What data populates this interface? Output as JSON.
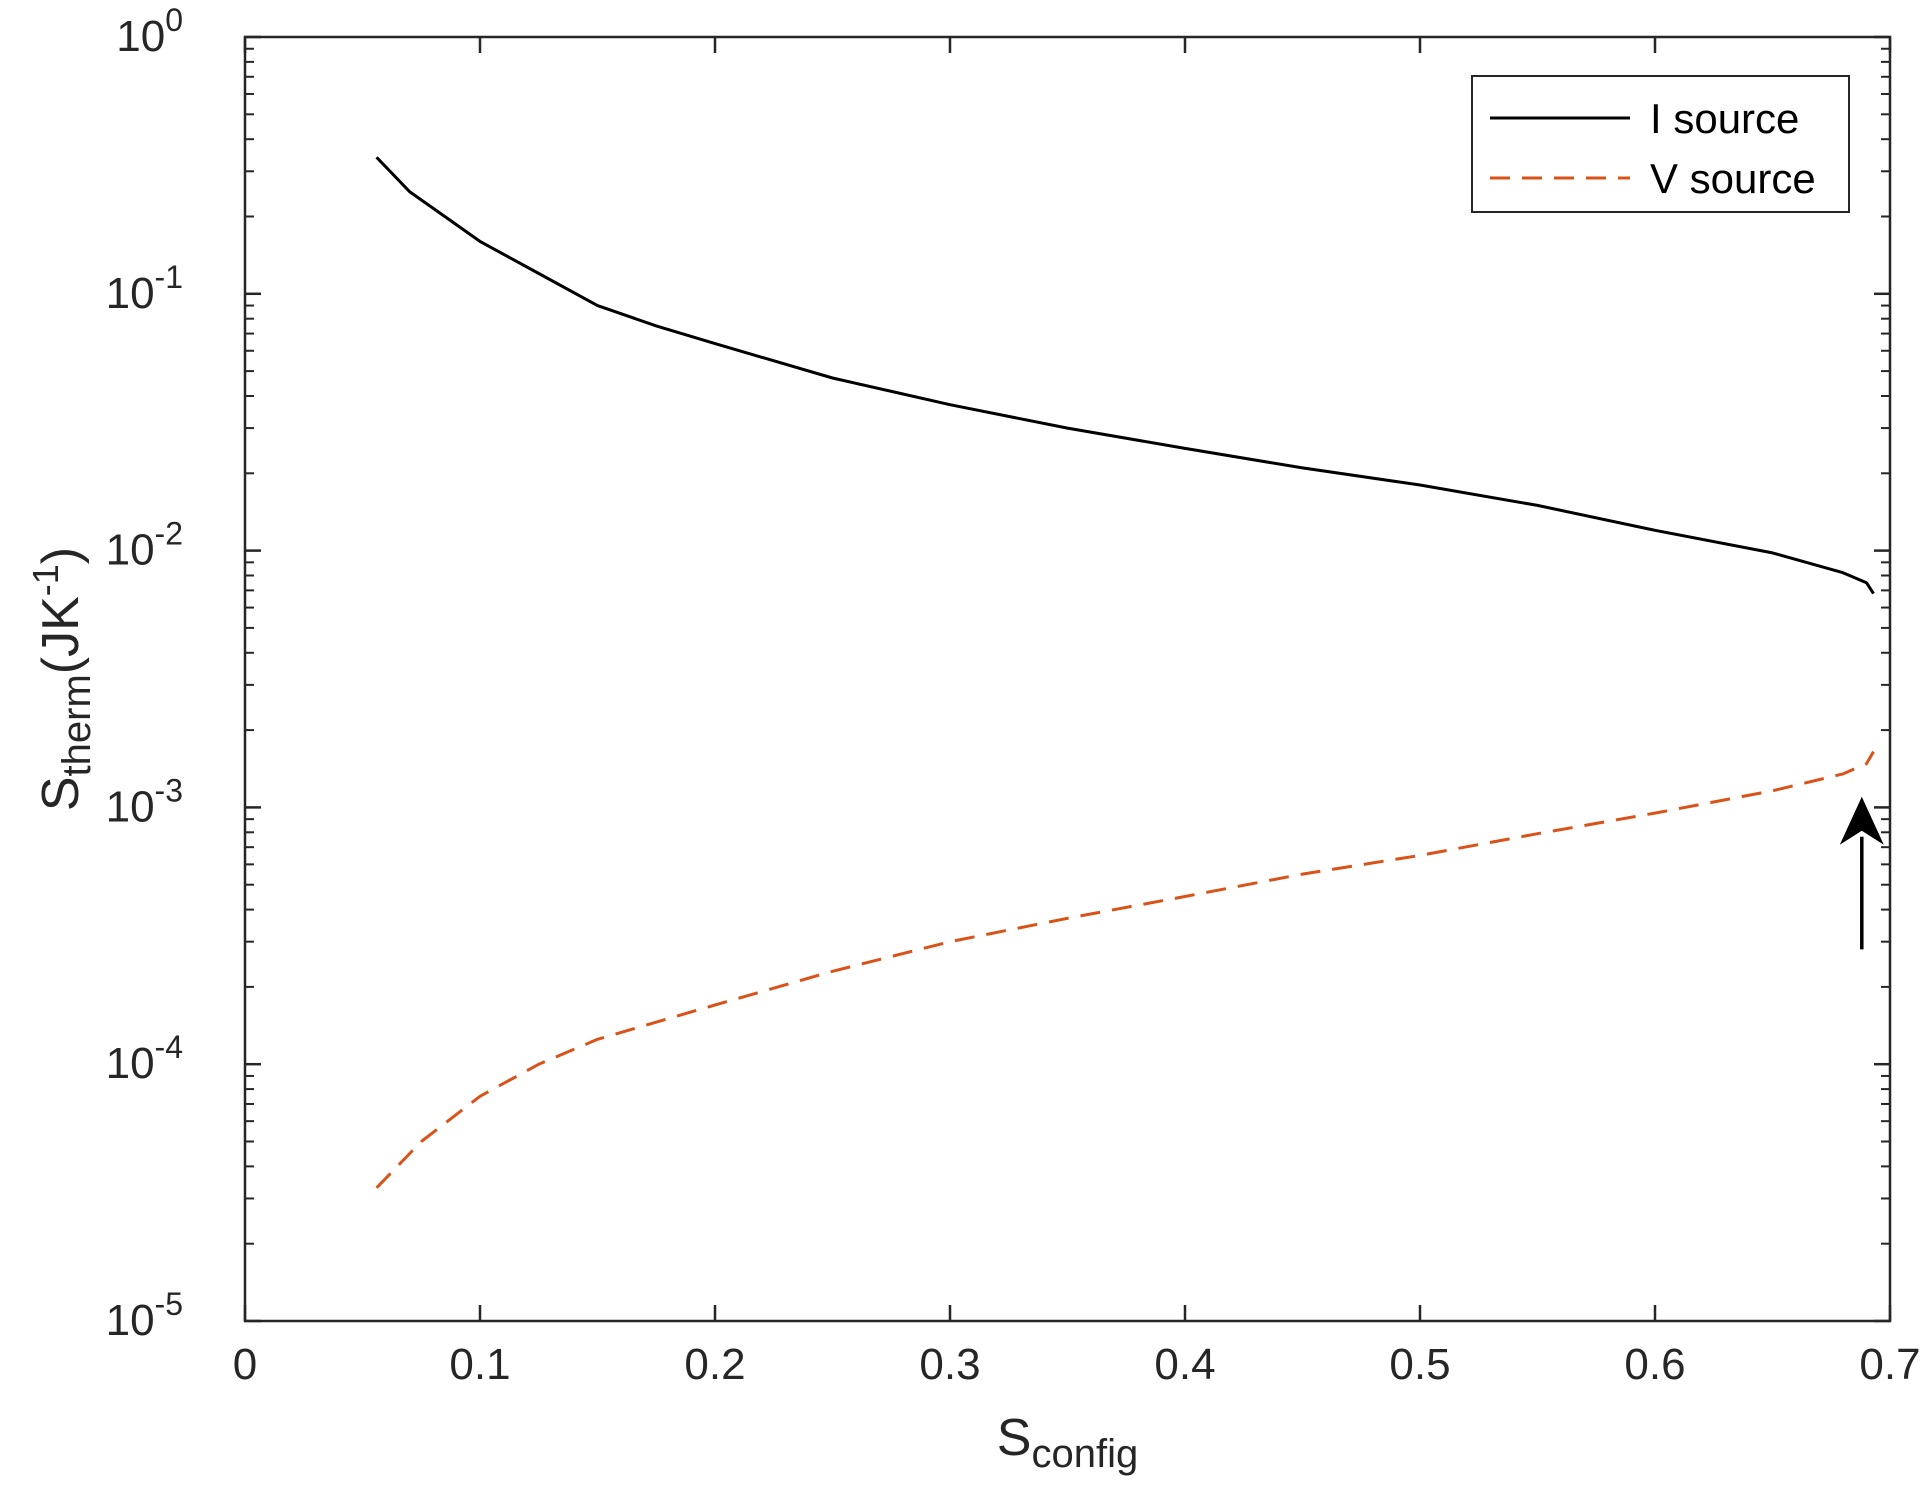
{
  "chart_data": {
    "type": "line",
    "xlabel": {
      "main": "S",
      "sub": "config"
    },
    "ylabel": {
      "main": "S",
      "sub": "therm",
      "unit_pre": "(JK",
      "unit_sup": "-1",
      "unit_post": ")"
    },
    "xlim": [
      0,
      0.7
    ],
    "ylim": [
      1e-05,
      1
    ],
    "yscale": "log",
    "xticks": [
      {
        "value": 0,
        "label": "0"
      },
      {
        "value": 0.1,
        "label": "0.1"
      },
      {
        "value": 0.2,
        "label": "0.2"
      },
      {
        "value": 0.3,
        "label": "0.3"
      },
      {
        "value": 0.4,
        "label": "0.4"
      },
      {
        "value": 0.5,
        "label": "0.5"
      },
      {
        "value": 0.6,
        "label": "0.6"
      },
      {
        "value": 0.7,
        "label": "0.7"
      }
    ],
    "yticks": [
      {
        "exp": 0,
        "base": "10",
        "sup": "0"
      },
      {
        "exp": -1,
        "base": "10",
        "sup": "-1"
      },
      {
        "exp": -2,
        "base": "10",
        "sup": "-2"
      },
      {
        "exp": -3,
        "base": "10",
        "sup": "-3"
      },
      {
        "exp": -4,
        "base": "10",
        "sup": "-4"
      },
      {
        "exp": -5,
        "base": "10",
        "sup": "-5"
      }
    ],
    "legend": {
      "placement": "top-right"
    },
    "series": [
      {
        "name": "I source",
        "color": "#000000",
        "style": "solid",
        "x": [
          0.056,
          0.07,
          0.085,
          0.1,
          0.125,
          0.15,
          0.175,
          0.2,
          0.25,
          0.3,
          0.35,
          0.4,
          0.45,
          0.5,
          0.55,
          0.6,
          0.65,
          0.68,
          0.69,
          0.693
        ],
        "y": [
          0.34,
          0.25,
          0.2,
          0.16,
          0.12,
          0.09,
          0.075,
          0.064,
          0.047,
          0.037,
          0.03,
          0.025,
          0.021,
          0.018,
          0.015,
          0.012,
          0.0098,
          0.0082,
          0.0075,
          0.0068
        ]
      },
      {
        "name": "V source",
        "color": "#D95319",
        "style": "dashed",
        "x": [
          0.056,
          0.075,
          0.1,
          0.125,
          0.15,
          0.2,
          0.25,
          0.3,
          0.35,
          0.4,
          0.45,
          0.5,
          0.55,
          0.6,
          0.65,
          0.68,
          0.69,
          0.693
        ],
        "y": [
          3.3e-05,
          5e-05,
          7.5e-05,
          0.0001,
          0.000125,
          0.00017,
          0.00023,
          0.0003,
          0.00037,
          0.00045,
          0.00055,
          0.00065,
          0.00079,
          0.00095,
          0.00116,
          0.00135,
          0.00148,
          0.00165
        ]
      }
    ],
    "annotations": [
      {
        "type": "arrow",
        "direction": "up",
        "x": 0.688,
        "y_from": 0.00028,
        "y_to": 0.0011,
        "color": "#000000"
      }
    ]
  }
}
